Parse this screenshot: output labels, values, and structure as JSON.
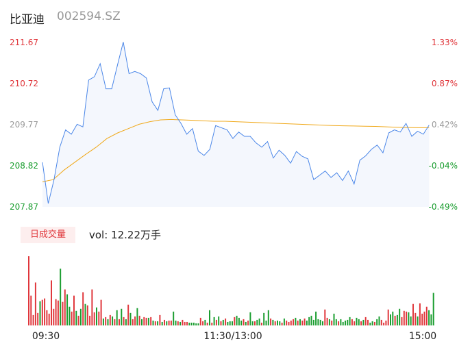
{
  "header": {
    "name": "比亚迪",
    "code": "002594.SZ"
  },
  "volume_panel": {
    "tag": "日成交量",
    "label": "vol: 12.22万手"
  },
  "colors": {
    "up": "#e0363b",
    "down": "#1a9d2f",
    "neutral": "#999999",
    "price_line": "#4a86e8",
    "avg_line": "#f0a818",
    "area_fill": "#f4f7fd"
  },
  "chart_data": [
    {
      "type": "line",
      "title": "比亚迪 002594.SZ",
      "ylim": [
        207.87,
        211.67
      ],
      "y_ticks_left": [
        "211.67",
        "210.72",
        "209.77",
        "208.82",
        "207.87"
      ],
      "y_ticks_right": [
        "1.33%",
        "0.87%",
        "0.42%",
        "-0.04%",
        "-0.49%"
      ],
      "x_ticks": [
        "09:30",
        "11:30/13:00",
        "15:00"
      ],
      "series": [
        {
          "values": [
            208.9,
            207.95,
            208.5,
            209.25,
            209.65,
            209.55,
            209.78,
            209.72,
            210.8,
            210.88,
            211.18,
            210.6,
            210.6,
            211.15,
            211.68,
            210.95,
            211.0,
            210.95,
            210.85,
            210.3,
            210.1,
            210.6,
            210.62,
            210.0,
            209.8,
            209.55,
            209.68,
            209.16,
            209.06,
            209.2,
            209.75,
            209.7,
            209.65,
            209.45,
            209.6,
            209.5,
            209.5,
            209.35,
            209.25,
            209.38,
            209.0,
            209.18,
            209.06,
            208.88,
            209.15,
            209.04,
            208.98,
            208.5,
            208.6,
            208.7,
            208.55,
            208.66,
            208.48,
            208.7,
            208.4,
            208.95,
            209.05,
            209.2,
            209.3,
            209.12,
            209.58,
            209.65,
            209.6,
            209.8,
            209.5,
            209.62,
            209.55,
            209.76
          ],
          "x_end": 0.99
        },
        {
          "values": [
            208.45,
            208.5,
            208.72,
            208.9,
            209.08,
            209.25,
            209.45,
            209.58,
            209.68,
            209.78,
            209.84,
            209.88,
            209.89,
            209.88,
            209.87,
            209.86,
            209.85,
            209.85,
            209.84,
            209.83,
            209.82,
            209.81,
            209.8,
            209.79,
            209.78,
            209.77,
            209.76,
            209.75,
            209.745,
            209.74,
            209.735,
            209.73,
            209.72,
            209.71,
            209.705,
            209.7,
            209.7
          ],
          "x_end": 0.99
        }
      ]
    },
    {
      "type": "bar",
      "title": "日成交量",
      "ylim": [
        0,
        100
      ],
      "values": [
        100,
        43,
        15,
        62,
        18,
        35,
        37,
        39,
        22,
        17,
        65,
        24,
        38,
        36,
        82,
        34,
        52,
        45,
        27,
        20,
        43,
        21,
        14,
        24,
        48,
        31,
        29,
        14,
        52,
        19,
        26,
        20,
        37,
        10,
        12,
        9,
        15,
        13,
        9,
        22,
        9,
        24,
        12,
        9,
        30,
        18,
        9,
        13,
        25,
        14,
        9,
        12,
        11,
        11,
        12,
        7,
        6,
        6,
        15,
        5,
        8,
        6,
        7,
        7,
        20,
        7,
        6,
        5,
        8,
        5,
        5,
        4,
        4,
        4,
        3,
        3,
        11,
        6,
        8,
        4,
        22,
        4,
        12,
        8,
        13,
        6,
        8,
        10,
        5,
        6,
        6,
        12,
        14,
        11,
        7,
        9,
        5,
        7,
        19,
        6,
        6,
        8,
        10,
        4,
        18,
        7,
        22,
        10,
        8,
        6,
        7,
        6,
        4,
        10,
        7,
        5,
        7,
        9,
        11,
        7,
        9,
        7,
        10,
        7,
        12,
        14,
        8,
        20,
        9,
        8,
        6,
        23,
        11,
        9,
        7,
        17,
        9,
        6,
        9,
        5,
        7,
        8,
        12,
        9,
        6,
        11,
        9,
        6,
        8,
        12,
        8,
        4,
        6,
        5,
        9,
        13,
        8,
        4,
        7,
        23,
        16,
        20,
        14,
        15,
        24,
        12,
        21,
        20,
        19,
        13,
        31,
        18,
        13,
        32,
        17,
        20,
        27,
        22,
        16,
        47
      ],
      "up": [
        1,
        1,
        1,
        1,
        1,
        0,
        1,
        1,
        1,
        1,
        1,
        1,
        1,
        1,
        0,
        1,
        1,
        0,
        0,
        1,
        1,
        0,
        1,
        0,
        1,
        0,
        1,
        1,
        1,
        1,
        0,
        1,
        1,
        0,
        1,
        0,
        1,
        0,
        1,
        0,
        1,
        0,
        1,
        0,
        1,
        0,
        1,
        1,
        0,
        1,
        0,
        1,
        1,
        0,
        1,
        0,
        1,
        0,
        1,
        0,
        1,
        0,
        1,
        1,
        0,
        0,
        1,
        0,
        1,
        1,
        1,
        0,
        0,
        0,
        0,
        0,
        1,
        1,
        0,
        1,
        0,
        1,
        0,
        1,
        0,
        1,
        0,
        1,
        0,
        0,
        0,
        1,
        0,
        0,
        0,
        1,
        0,
        1,
        0,
        0,
        1,
        0,
        0,
        1,
        0,
        0,
        0,
        1,
        0,
        1,
        0,
        0,
        1,
        0,
        1,
        1,
        1,
        1,
        0,
        1,
        0,
        1,
        1,
        0,
        0,
        0,
        0,
        0,
        0,
        0,
        0,
        1,
        1,
        0,
        1,
        0,
        0,
        1,
        0,
        0,
        0,
        0,
        0,
        1,
        1,
        0,
        0,
        1,
        0,
        1,
        1,
        0,
        0,
        1,
        0,
        0,
        1,
        1,
        1,
        1,
        0,
        0,
        1,
        0,
        0,
        1,
        1,
        1,
        0,
        0,
        1,
        1,
        0,
        1,
        1,
        1,
        1,
        0,
        0,
        0
      ]
    }
  ]
}
